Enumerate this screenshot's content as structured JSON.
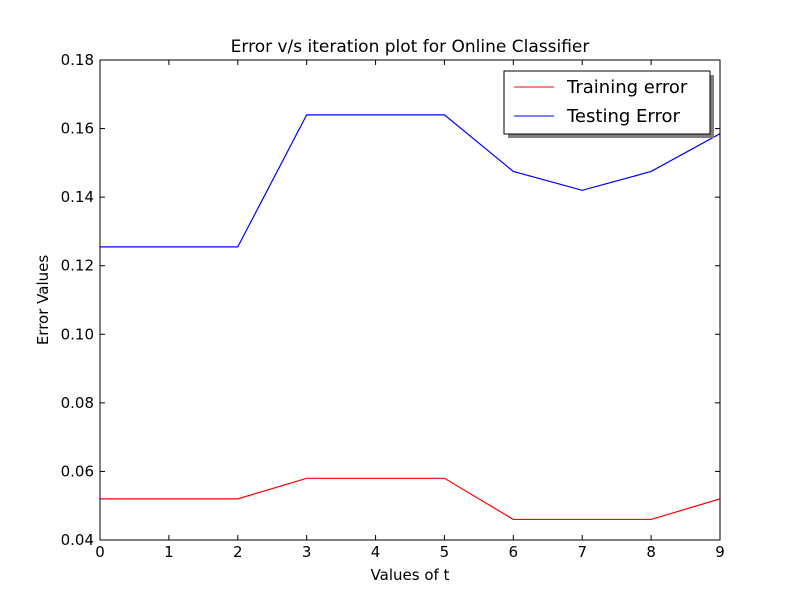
{
  "chart_data": {
    "type": "line",
    "title": "Error v/s iteration plot for Online Classifier",
    "xlabel": "Values of t",
    "ylabel": "Error Values",
    "xlim": [
      0,
      9
    ],
    "ylim": [
      0.04,
      0.18
    ],
    "x_ticks": [
      "0",
      "1",
      "2",
      "3",
      "4",
      "5",
      "6",
      "7",
      "8",
      "9"
    ],
    "y_ticks": [
      "0.04",
      "0.06",
      "0.08",
      "0.10",
      "0.12",
      "0.14",
      "0.16",
      "0.18"
    ],
    "grid": false,
    "legend_position": "top-right",
    "x": [
      0,
      1,
      2,
      3,
      4,
      5,
      6,
      7,
      8,
      9
    ],
    "series": [
      {
        "name": "Training error",
        "color": "#ff0000",
        "values": [
          0.052,
          0.052,
          0.052,
          0.058,
          0.058,
          0.058,
          0.046,
          0.046,
          0.046,
          0.052
        ]
      },
      {
        "name": "Testing Error",
        "color": "#0000ff",
        "values": [
          0.1255,
          0.1255,
          0.1255,
          0.164,
          0.164,
          0.164,
          0.1475,
          0.142,
          0.1475,
          0.1585
        ]
      }
    ]
  }
}
